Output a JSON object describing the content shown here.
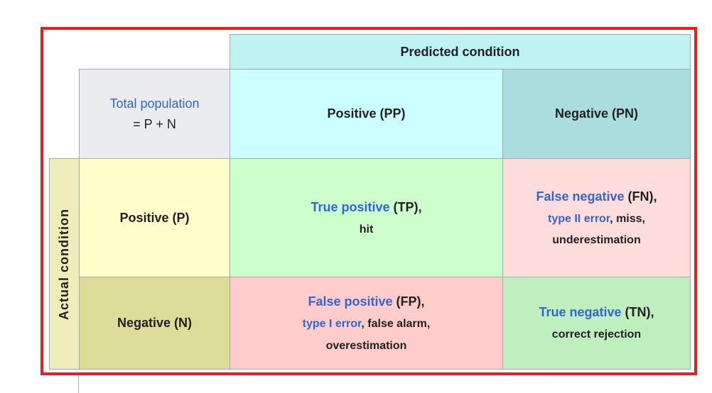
{
  "table": {
    "predicted_condition": "Predicted condition",
    "actual_condition": "Actual condition",
    "total_population": {
      "line1": "Total population",
      "line2": "= P + N"
    },
    "pred_pos": "Positive (PP)",
    "pred_neg": "Negative (PN)",
    "actual_pos": "Positive (P)",
    "actual_neg": "Negative (N)",
    "tp": {
      "term": "True positive",
      "abbr": " (TP),",
      "line2": "hit"
    },
    "fn": {
      "term": "False negative",
      "abbr": " (FN),",
      "err": "type II error",
      "line2_rest": ", miss,",
      "line3": "underestimation"
    },
    "fp": {
      "term": "False positive",
      "abbr": " (FP),",
      "err": "type I error",
      "line2_rest": ", false alarm,",
      "line3": "overestimation"
    },
    "tn": {
      "term": "True negative",
      "abbr": " (TN),",
      "line2": "correct rejection"
    }
  },
  "colors": {
    "header_cyan": "#bff2f2",
    "pred_pos_bg": "#ccffff",
    "pred_neg_bg": "#aadddd",
    "total_bg": "#eaecf0",
    "actual_label_bg": "#eeeebb",
    "actual_pos_bg": "#ffffcc",
    "actual_neg_bg": "#dddd99",
    "true_bg": "#ccffcc",
    "false_bg": "#ffdddd",
    "highlight": "#ee1c1c"
  }
}
